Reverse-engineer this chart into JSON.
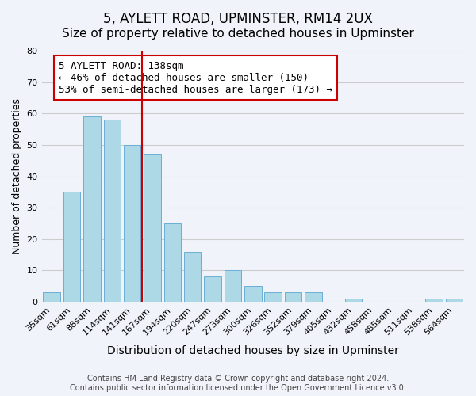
{
  "title": "5, AYLETT ROAD, UPMINSTER, RM14 2UX",
  "subtitle": "Size of property relative to detached houses in Upminster",
  "xlabel": "Distribution of detached houses by size in Upminster",
  "ylabel": "Number of detached properties",
  "categories": [
    "35sqm",
    "61sqm",
    "88sqm",
    "114sqm",
    "141sqm",
    "167sqm",
    "194sqm",
    "220sqm",
    "247sqm",
    "273sqm",
    "300sqm",
    "326sqm",
    "352sqm",
    "379sqm",
    "405sqm",
    "432sqm",
    "458sqm",
    "485sqm",
    "511sqm",
    "538sqm",
    "564sqm"
  ],
  "values": [
    3,
    35,
    59,
    58,
    50,
    47,
    25,
    16,
    8,
    10,
    5,
    3,
    3,
    3,
    0,
    1,
    0,
    0,
    0,
    1,
    1
  ],
  "bar_color": "#add8e6",
  "bar_edge_color": "#6baed6",
  "vline_x": 4.47,
  "vline_color": "#cc0000",
  "annotation_text": "5 AYLETT ROAD: 138sqm\n← 46% of detached houses are smaller (150)\n53% of semi-detached houses are larger (173) →",
  "annotation_box_color": "#ffffff",
  "annotation_box_edge": "#cc0000",
  "ylim": [
    0,
    80
  ],
  "yticks": [
    0,
    10,
    20,
    30,
    40,
    50,
    60,
    70,
    80
  ],
  "grid_color": "#cccccc",
  "background_color": "#f0f4fa",
  "footer_text": "Contains HM Land Registry data © Crown copyright and database right 2024.\nContains public sector information licensed under the Open Government Licence v3.0.",
  "title_fontsize": 12,
  "subtitle_fontsize": 11,
  "xlabel_fontsize": 10,
  "ylabel_fontsize": 9,
  "tick_fontsize": 8,
  "annotation_fontsize": 9
}
